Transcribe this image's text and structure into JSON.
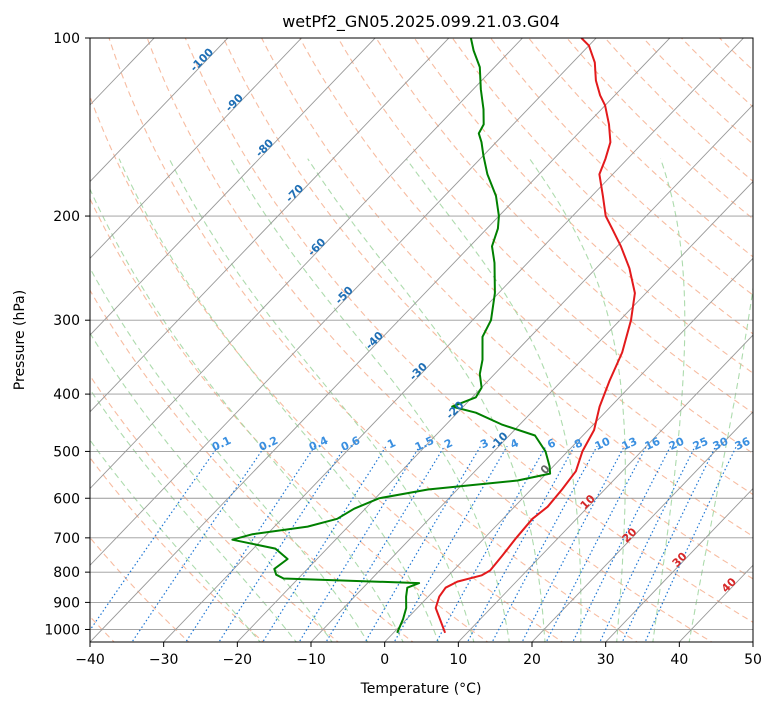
{
  "chart_data": {
    "type": "line",
    "subtype": "skew-T log-P diagram",
    "title": "wetPf2_GN05.2025.099.21.03.G04",
    "xlabel": "Temperature (°C)",
    "ylabel": "Pressure (hPa)",
    "xlim": [
      -40,
      50
    ],
    "ylim": [
      1050,
      100
    ],
    "y_scale": "log",
    "x_ticks": [
      -40,
      -30,
      -20,
      -10,
      0,
      10,
      20,
      30,
      40,
      50
    ],
    "y_ticks": [
      100,
      200,
      300,
      400,
      500,
      600,
      700,
      800,
      900,
      1000
    ],
    "grid": true,
    "series": [
      {
        "color": "#e31a1c",
        "points": [
          {
            "p": 1013,
            "t": 7.0
          },
          {
            "p": 960,
            "t": 4.5
          },
          {
            "p": 920,
            "t": 2.5
          },
          {
            "p": 880,
            "t": 1.5
          },
          {
            "p": 850,
            "t": 1.2
          },
          {
            "p": 830,
            "t": 2.0
          },
          {
            "p": 810,
            "t": 4.5
          },
          {
            "p": 795,
            "t": 5.0
          },
          {
            "p": 750,
            "t": 4.7
          },
          {
            "p": 700,
            "t": 4.3
          },
          {
            "p": 650,
            "t": 4.0
          },
          {
            "p": 620,
            "t": 4.5
          },
          {
            "p": 580,
            "t": 4.2
          },
          {
            "p": 540,
            "t": 3.7
          },
          {
            "p": 500,
            "t": 2.0
          },
          {
            "p": 460,
            "t": 0.8
          },
          {
            "p": 420,
            "t": -1.5
          },
          {
            "p": 380,
            "t": -3.5
          },
          {
            "p": 340,
            "t": -5.5
          },
          {
            "p": 300,
            "t": -8.5
          },
          {
            "p": 270,
            "t": -11.5
          },
          {
            "p": 245,
            "t": -15.5
          },
          {
            "p": 225,
            "t": -19.5
          },
          {
            "p": 210,
            "t": -23.0
          },
          {
            "p": 200,
            "t": -25.5
          },
          {
            "p": 185,
            "t": -28.5
          },
          {
            "p": 170,
            "t": -31.8
          },
          {
            "p": 160,
            "t": -33.0
          },
          {
            "p": 150,
            "t": -34.5
          },
          {
            "p": 140,
            "t": -37.0
          },
          {
            "p": 130,
            "t": -40.0
          },
          {
            "p": 125,
            "t": -42.0
          },
          {
            "p": 118,
            "t": -44.5
          },
          {
            "p": 110,
            "t": -47.0
          },
          {
            "p": 103,
            "t": -50.0
          },
          {
            "p": 100,
            "t": -52.0
          }
        ]
      },
      {
        "color": "#008000",
        "points": [
          {
            "p": 1013,
            "t": 0.5
          },
          {
            "p": 960,
            "t": -0.5
          },
          {
            "p": 920,
            "t": -1.5
          },
          {
            "p": 880,
            "t": -3.0
          },
          {
            "p": 850,
            "t": -4.0
          },
          {
            "p": 835,
            "t": -3.0
          },
          {
            "p": 820,
            "t": -22.0
          },
          {
            "p": 808,
            "t": -23.5
          },
          {
            "p": 790,
            "t": -24.5
          },
          {
            "p": 760,
            "t": -24.0
          },
          {
            "p": 730,
            "t": -27.0
          },
          {
            "p": 705,
            "t": -34.0
          },
          {
            "p": 690,
            "t": -32.0
          },
          {
            "p": 670,
            "t": -25.5
          },
          {
            "p": 650,
            "t": -22.5
          },
          {
            "p": 625,
            "t": -21.5
          },
          {
            "p": 600,
            "t": -19.5
          },
          {
            "p": 580,
            "t": -14.0
          },
          {
            "p": 560,
            "t": -3.0
          },
          {
            "p": 545,
            "t": 0.5
          },
          {
            "p": 530,
            "t": -0.5
          },
          {
            "p": 500,
            "t": -3.0
          },
          {
            "p": 470,
            "t": -6.5
          },
          {
            "p": 450,
            "t": -12.5
          },
          {
            "p": 430,
            "t": -17.5
          },
          {
            "p": 420,
            "t": -21.5
          },
          {
            "p": 405,
            "t": -19.5
          },
          {
            "p": 390,
            "t": -20.0
          },
          {
            "p": 370,
            "t": -22.0
          },
          {
            "p": 350,
            "t": -23.5
          },
          {
            "p": 320,
            "t": -26.5
          },
          {
            "p": 300,
            "t": -27.5
          },
          {
            "p": 270,
            "t": -30.5
          },
          {
            "p": 240,
            "t": -34.5
          },
          {
            "p": 225,
            "t": -37.0
          },
          {
            "p": 210,
            "t": -38.5
          },
          {
            "p": 200,
            "t": -40.0
          },
          {
            "p": 185,
            "t": -43.0
          },
          {
            "p": 170,
            "t": -47.0
          },
          {
            "p": 158,
            "t": -50.0
          },
          {
            "p": 150,
            "t": -52.0
          },
          {
            "p": 145,
            "t": -53.5
          },
          {
            "p": 140,
            "t": -54.0
          },
          {
            "p": 132,
            "t": -56.0
          },
          {
            "p": 122,
            "t": -59.0
          },
          {
            "p": 112,
            "t": -62.0
          },
          {
            "p": 105,
            "t": -65.0
          },
          {
            "p": 100,
            "t": -67.0
          }
        ]
      }
    ],
    "dry_adiabat_labels": [
      "-100",
      "-90",
      "-80",
      "-70",
      "-60",
      "-50",
      "-40",
      "-30",
      "-20",
      "-10",
      "0",
      "10",
      "20",
      "30",
      "40"
    ],
    "mixing_ratio_labels": [
      "0.1",
      "0.2",
      "0.4",
      "0.6",
      "1",
      "1.5",
      "2",
      "3",
      "4",
      "6",
      "8",
      "10",
      "13",
      "16",
      "20",
      "25",
      "30",
      "36"
    ],
    "colors": {
      "temperature": "#e31a1c",
      "dewpoint": "#008000",
      "isotherm_grid": "#999999",
      "dry_adiabat": "#f4a582",
      "moist_adiabat": "#9fd59f",
      "mixing_ratio": "#1f77d4",
      "adiabat_label_cold": "#1f6fb5",
      "adiabat_label_warm": "#d62728",
      "adiabat_label_zero": "#666666"
    }
  }
}
